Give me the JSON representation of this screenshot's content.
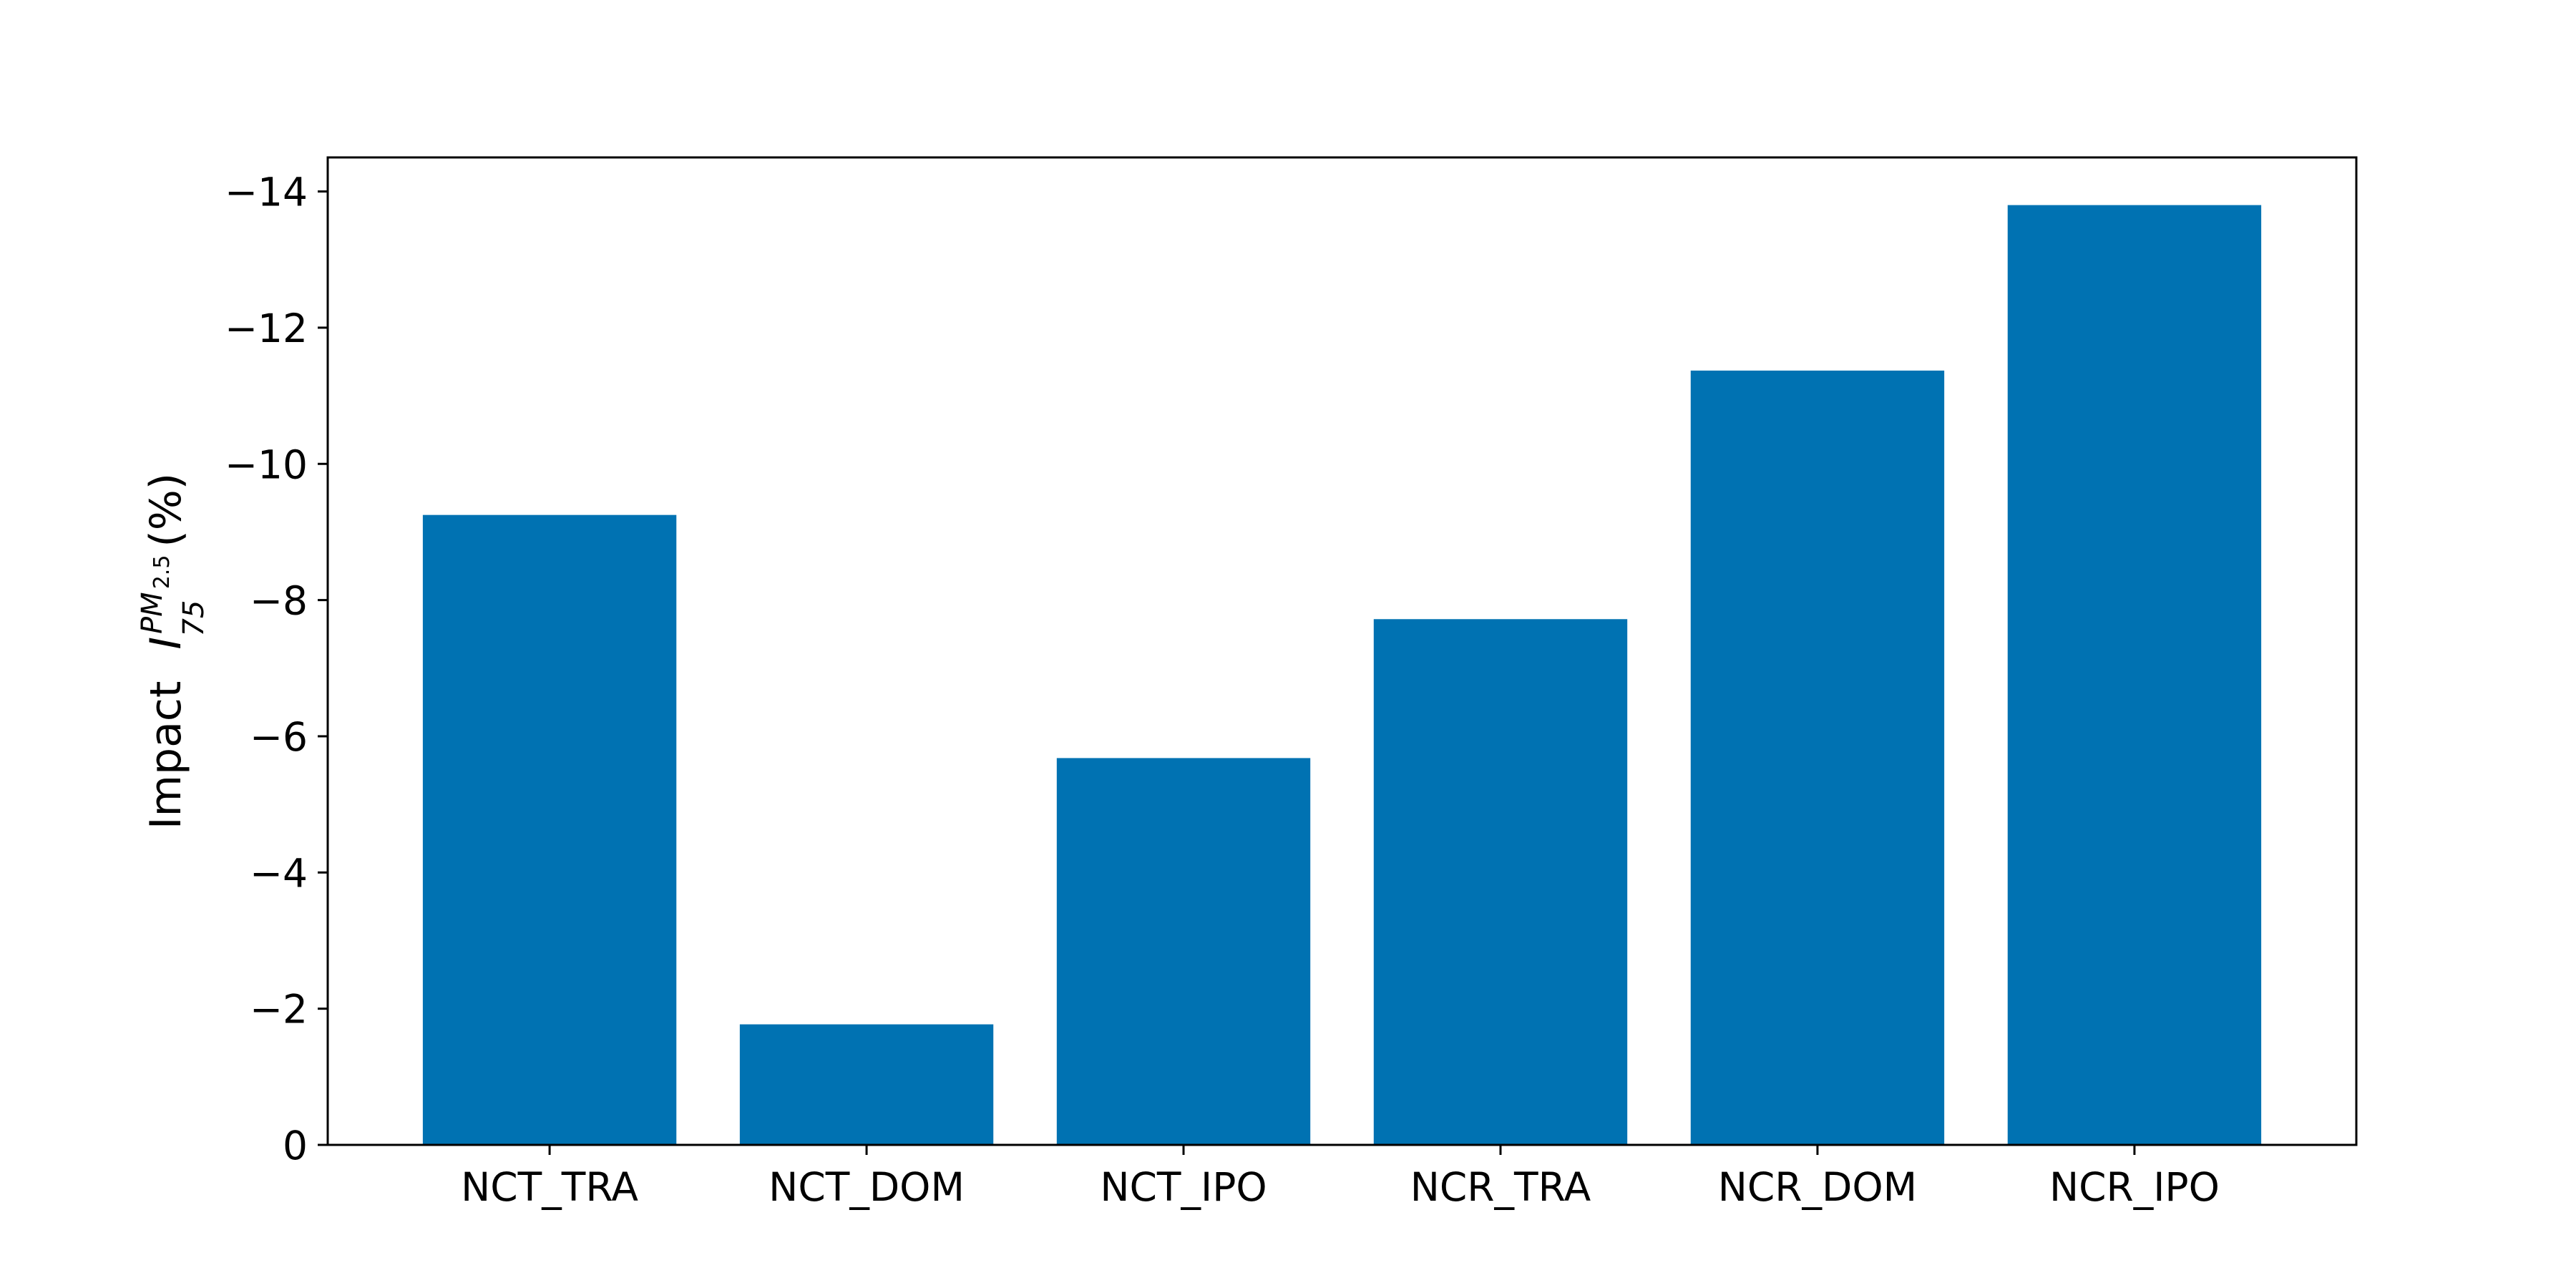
{
  "chart_data": {
    "type": "bar",
    "categories": [
      "NCT_TRA",
      "NCT_DOM",
      "NCT_IPO",
      "NCR_TRA",
      "NCR_DOM",
      "NCR_IPO"
    ],
    "values": [
      -9.25,
      -1.77,
      -5.68,
      -7.72,
      -11.37,
      -13.8
    ],
    "ylabel": {
      "prefix": "Impact",
      "symbol": "I",
      "subscript": "75",
      "superscript": "PM",
      "superscript_sub": "2.5",
      "unit": "(%)"
    },
    "ylim": [
      0,
      -14.5
    ],
    "yticks": [
      0,
      -2,
      -4,
      -6,
      -8,
      -10,
      -12,
      -14
    ],
    "ytick_labels": [
      "0",
      "−2",
      "−4",
      "−6",
      "−8",
      "−10",
      "−12",
      "−14"
    ],
    "y_inverted": true,
    "grid": false,
    "legend": "none",
    "bar_color": "#0072b2"
  }
}
